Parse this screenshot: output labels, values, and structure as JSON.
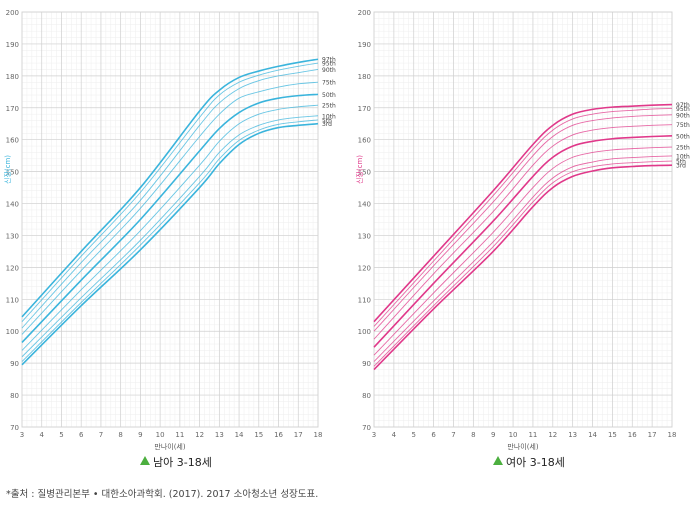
{
  "footnote": "*출처 : 질병관리본부 • 대한소아과학회. (2017). 2017 소아청소년 성장도표.",
  "chart_data": [
    {
      "type": "line",
      "caption": "남아 3-18세",
      "xlabel": "만나이(세)",
      "ylabel": "신장(cm)",
      "xlim": [
        3,
        18
      ],
      "ylim": [
        70,
        200
      ],
      "x_ticks": [
        3,
        4,
        5,
        6,
        7,
        8,
        9,
        10,
        11,
        12,
        13,
        14,
        15,
        16,
        17,
        18
      ],
      "y_ticks": [
        70,
        80,
        90,
        100,
        110,
        120,
        130,
        140,
        150,
        160,
        170,
        180,
        190,
        200
      ],
      "grid": true,
      "color": "#3ab4dc",
      "series": [
        {
          "name": "97th",
          "x": [
            3,
            6,
            9,
            12,
            13,
            14,
            15,
            16,
            17,
            18
          ],
          "values": [
            104.5,
            125,
            145,
            169,
            175.5,
            179.5,
            181.5,
            183,
            184.2,
            185.2
          ]
        },
        {
          "name": "95th",
          "x": [
            3,
            6,
            9,
            12,
            13,
            14,
            15,
            16,
            17,
            18
          ],
          "values": [
            103,
            123.5,
            143.5,
            167,
            174,
            178,
            180.2,
            181.8,
            183,
            184
          ]
        },
        {
          "name": "90th",
          "x": [
            3,
            6,
            9,
            12,
            13,
            14,
            15,
            16,
            17,
            18
          ],
          "values": [
            101,
            121.5,
            141,
            164.5,
            171.5,
            176,
            178.5,
            180,
            181,
            182
          ]
        },
        {
          "name": "75th",
          "x": [
            3,
            6,
            9,
            12,
            13,
            14,
            15,
            16,
            17,
            18
          ],
          "values": [
            99,
            119,
            138.5,
            161,
            168,
            173,
            175,
            176.5,
            177.5,
            178
          ]
        },
        {
          "name": "50th",
          "x": [
            3,
            6,
            9,
            12,
            13,
            14,
            15,
            16,
            17,
            18
          ],
          "values": [
            96.5,
            116,
            135,
            156.5,
            163.5,
            168.5,
            171.5,
            173,
            173.8,
            174.2
          ]
        },
        {
          "name": "25th",
          "x": [
            3,
            6,
            9,
            12,
            13,
            14,
            15,
            16,
            17,
            18
          ],
          "values": [
            94,
            113,
            131.5,
            152,
            159.5,
            165,
            168,
            169.5,
            170.3,
            170.8
          ]
        },
        {
          "name": "10th",
          "x": [
            3,
            6,
            9,
            12,
            13,
            14,
            15,
            16,
            17,
            18
          ],
          "values": [
            92,
            110.5,
            128.5,
            148.5,
            156,
            161.5,
            164.5,
            166.2,
            167,
            167.5
          ]
        },
        {
          "name": "5th",
          "x": [
            3,
            6,
            9,
            12,
            13,
            14,
            15,
            16,
            17,
            18
          ],
          "values": [
            90.5,
            109,
            127,
            146.5,
            154,
            159.8,
            163,
            164.8,
            165.6,
            166.2
          ]
        },
        {
          "name": "3rd",
          "x": [
            3,
            6,
            9,
            12,
            13,
            14,
            15,
            16,
            17,
            18
          ],
          "values": [
            89.5,
            108,
            125.5,
            145,
            152.5,
            158.5,
            162,
            163.8,
            164.5,
            165
          ]
        }
      ]
    },
    {
      "type": "line",
      "caption": "여아 3-18세",
      "xlabel": "만나이(세)",
      "ylabel": "신장(cm)",
      "xlim": [
        3,
        18
      ],
      "ylim": [
        70,
        200
      ],
      "x_ticks": [
        3,
        4,
        5,
        6,
        7,
        8,
        9,
        10,
        11,
        12,
        13,
        14,
        15,
        16,
        17,
        18
      ],
      "y_ticks": [
        70,
        80,
        90,
        100,
        110,
        120,
        130,
        140,
        150,
        160,
        170,
        180,
        190,
        200
      ],
      "grid": true,
      "color": "#e0388a",
      "series": [
        {
          "name": "97th",
          "x": [
            3,
            6,
            9,
            11,
            12,
            13,
            14,
            15,
            16,
            17,
            18
          ],
          "values": [
            103,
            123.5,
            144,
            158.5,
            164.5,
            168,
            169.5,
            170.2,
            170.5,
            170.8,
            171
          ]
        },
        {
          "name": "95th",
          "x": [
            3,
            6,
            9,
            11,
            12,
            13,
            14,
            15,
            16,
            17,
            18
          ],
          "values": [
            101.5,
            122,
            142.5,
            157,
            163,
            166.5,
            168,
            168.8,
            169.2,
            169.6,
            169.8
          ]
        },
        {
          "name": "90th",
          "x": [
            3,
            6,
            9,
            11,
            12,
            13,
            14,
            15,
            16,
            17,
            18
          ],
          "values": [
            100,
            120.5,
            140.5,
            155,
            161,
            164.5,
            166,
            166.8,
            167.3,
            167.6,
            167.8
          ]
        },
        {
          "name": "75th",
          "x": [
            3,
            6,
            9,
            11,
            12,
            13,
            14,
            15,
            16,
            17,
            18
          ],
          "values": [
            97.5,
            118,
            137.5,
            152,
            158,
            161.5,
            163,
            163.8,
            164.2,
            164.5,
            164.7
          ]
        },
        {
          "name": "50th",
          "x": [
            3,
            6,
            9,
            11,
            12,
            13,
            14,
            15,
            16,
            17,
            18
          ],
          "values": [
            95,
            115,
            134.5,
            148.5,
            154.5,
            158,
            159.5,
            160.3,
            160.7,
            161,
            161.2
          ]
        },
        {
          "name": "25th",
          "x": [
            3,
            6,
            9,
            11,
            12,
            13,
            14,
            15,
            16,
            17,
            18
          ],
          "values": [
            92.5,
            112,
            131,
            145,
            151,
            154.5,
            156,
            156.8,
            157.2,
            157.5,
            157.7
          ]
        },
        {
          "name": "10th",
          "x": [
            3,
            6,
            9,
            11,
            12,
            13,
            14,
            15,
            16,
            17,
            18
          ],
          "values": [
            90.5,
            109.5,
            128,
            142,
            148,
            151.5,
            153,
            154,
            154.4,
            154.7,
            154.9
          ]
        },
        {
          "name": "5th",
          "x": [
            3,
            6,
            9,
            11,
            12,
            13,
            14,
            15,
            16,
            17,
            18
          ],
          "values": [
            89,
            108,
            126.5,
            140.5,
            146.5,
            150,
            151.5,
            152.4,
            152.8,
            153.1,
            153.3
          ]
        },
        {
          "name": "3rd",
          "x": [
            3,
            6,
            9,
            11,
            12,
            13,
            14,
            15,
            16,
            17,
            18
          ],
          "values": [
            88,
            107,
            125,
            139,
            145,
            148.5,
            150.2,
            151.2,
            151.6,
            151.9,
            152
          ]
        }
      ]
    }
  ]
}
